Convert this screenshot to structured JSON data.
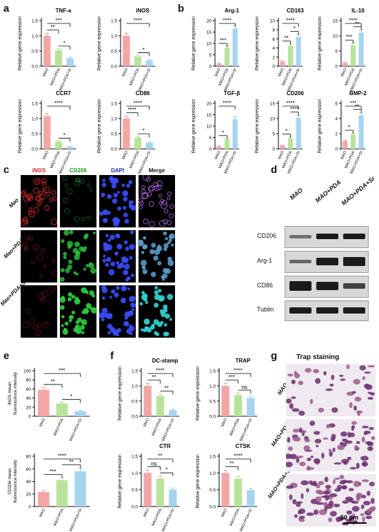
{
  "panels": {
    "a": "a",
    "b": "b",
    "c": "c",
    "d": "d",
    "e": "e",
    "f": "f",
    "g": "g"
  },
  "colors": {
    "mao": "#f4a6a6",
    "pda": "#b9e39a",
    "sr": "#a6d4ef",
    "stroke": "#333333"
  },
  "groups": [
    "MAO",
    "MAO+PDA",
    "MAO+PDA+Sr"
  ],
  "micro": {
    "columns": [
      "iNOS",
      "CD206",
      "DAPI",
      "Merge"
    ],
    "column_colors": [
      "#e02020",
      "#1a9c1a",
      "#1b2fc0",
      "#111111"
    ],
    "rows": [
      "Mao",
      "Mao+PDA",
      "Mao+PDA+Sr"
    ],
    "scalebar": "20 μm"
  },
  "western": {
    "lanes": [
      "MAO",
      "MAO+PDA",
      "MAO+PDA+Sr"
    ],
    "proteins": [
      "CD206",
      "Arg-1",
      "CD86",
      "Tublin"
    ]
  },
  "trap": {
    "title": "Trap staining",
    "rows": [
      "MAO",
      "MAO+PDA",
      "MAO+PDA+Sr"
    ],
    "scalebar": "50 μm"
  },
  "chart_data": [
    {
      "id": "tnfa",
      "type": "bar",
      "title": "TNF-a",
      "ylabel": "Relative gene expression",
      "categories": [
        "MAO",
        "MAO+PDA",
        "MAO+PDA+Sr"
      ],
      "values": [
        1.0,
        0.52,
        0.26
      ],
      "ylim": [
        0,
        1.5
      ],
      "yticks": [
        "0.0",
        "0.5",
        "1.0",
        "1.5"
      ],
      "sig": [
        {
          "a": 0,
          "b": 1,
          "t": "**"
        },
        {
          "a": 0,
          "b": 2,
          "t": "***"
        },
        {
          "a": 1,
          "b": 2,
          "t": "*"
        }
      ]
    },
    {
      "id": "inos",
      "type": "bar",
      "title": "iNOS",
      "ylabel": "Relative gene expression",
      "categories": [
        "MAO",
        "MAO+PDA",
        "MAO+PDA+Sr"
      ],
      "values": [
        1.0,
        0.32,
        0.19
      ],
      "ylim": [
        0,
        1.5
      ],
      "yticks": [
        "0.0",
        "0.5",
        "1.0",
        "1.5"
      ],
      "sig": [
        {
          "a": 0,
          "b": 2,
          "t": "****"
        },
        {
          "a": 1,
          "b": 2,
          "t": "*"
        }
      ]
    },
    {
      "id": "ccr7",
      "type": "bar",
      "title": "CCR7",
      "ylabel": "Relative gene expression",
      "categories": [
        "MAO",
        "MAO+PDA",
        "MAO+PDA+Sr"
      ],
      "values": [
        1.08,
        0.24,
        0.06
      ],
      "ylim": [
        0,
        1.5
      ],
      "yticks": [
        "0.0",
        "0.5",
        "1.0",
        "1.5"
      ],
      "sig": [
        {
          "a": 0,
          "b": 2,
          "t": "****"
        },
        {
          "a": 1,
          "b": 2,
          "t": "*"
        }
      ]
    },
    {
      "id": "cd86",
      "type": "bar",
      "title": "CD86",
      "ylabel": "Relative gene expression",
      "categories": [
        "MAO",
        "MAO+PDA",
        "MAO+PDA+Sr"
      ],
      "values": [
        1.0,
        0.37,
        0.2
      ],
      "ylim": [
        0,
        1.5
      ],
      "yticks": [
        "0.0",
        "0.5",
        "1.0",
        "1.5"
      ],
      "sig": [
        {
          "a": 0,
          "b": 1,
          "t": "****"
        },
        {
          "a": 0,
          "b": 2,
          "t": "****"
        },
        {
          "a": 1,
          "b": 2,
          "t": "*"
        }
      ]
    },
    {
      "id": "arg1",
      "type": "bar",
      "title": "Arg-1",
      "ylabel": "Relative gene expression",
      "categories": [
        "MAO",
        "MAO+PDA",
        "MAO+PDA+Sr"
      ],
      "values": [
        1.0,
        8.0,
        16.5
      ],
      "ylim": [
        0,
        20
      ],
      "yticks": [
        "0",
        "5",
        "10",
        "15",
        "20"
      ],
      "sig": [
        {
          "a": 0,
          "b": 1,
          "t": "***"
        },
        {
          "a": 0,
          "b": 2,
          "t": "****"
        }
      ]
    },
    {
      "id": "cd163",
      "type": "bar",
      "title": "CD163",
      "ylabel": "Relative gene expression",
      "categories": [
        "MAO",
        "MAO+PDA",
        "MAO+PDA+Sr"
      ],
      "values": [
        1.0,
        4.5,
        6.4
      ],
      "ylim": [
        0,
        10
      ],
      "yticks": [
        "0",
        "2",
        "4",
        "6",
        "8",
        "10"
      ],
      "sig": [
        {
          "a": 0,
          "b": 1,
          "t": "**"
        },
        {
          "a": 0,
          "b": 2,
          "t": "****"
        },
        {
          "a": 1,
          "b": 2,
          "t": "*"
        }
      ]
    },
    {
      "id": "il10",
      "type": "bar",
      "title": "IL-10",
      "ylabel": "Relative gene expression",
      "categories": [
        "MAO",
        "MAO+PDA",
        "MAO+PDA+Sr"
      ],
      "values": [
        1.0,
        7.0,
        11.0
      ],
      "ylim": [
        0,
        15
      ],
      "yticks": [
        "0",
        "5",
        "10",
        "15"
      ],
      "sig": [
        {
          "a": 0,
          "b": 1,
          "t": "***"
        },
        {
          "a": 0,
          "b": 2,
          "t": "****"
        },
        {
          "a": 1,
          "b": 2,
          "t": "**"
        }
      ]
    },
    {
      "id": "tgfb",
      "type": "bar",
      "title": "TGF-β",
      "ylabel": "Relative gene expression",
      "categories": [
        "MAO",
        "MAO+PDA",
        "MAO+PDA+Sr"
      ],
      "values": [
        1.0,
        4.2,
        13.0
      ],
      "ylim": [
        0,
        20
      ],
      "yticks": [
        "0",
        "5",
        "10",
        "15",
        "20"
      ],
      "sig": [
        {
          "a": 0,
          "b": 1,
          "t": "*"
        },
        {
          "a": 0,
          "b": 2,
          "t": "****"
        }
      ]
    },
    {
      "id": "cd206",
      "type": "bar",
      "title": "CD206",
      "ylabel": "Relative gene expression",
      "categories": [
        "MAO",
        "MAO+PDA",
        "MAO+PDA+Sr"
      ],
      "values": [
        1.0,
        3.6,
        10.2
      ],
      "ylim": [
        0,
        15
      ],
      "yticks": [
        "0",
        "5",
        "10",
        "15"
      ],
      "sig": [
        {
          "a": 0,
          "b": 1,
          "t": "*"
        },
        {
          "a": 0,
          "b": 2,
          "t": "****"
        },
        {
          "a": 1,
          "b": 2,
          "t": "****"
        }
      ]
    },
    {
      "id": "bmp2",
      "type": "bar",
      "title": "BMP-2",
      "ylabel": "Relative gene expression",
      "categories": [
        "MAO",
        "MAO+PDA",
        "MAO+PDA+Sr"
      ],
      "values": [
        1.0,
        1.9,
        4.4
      ],
      "ylim": [
        0,
        6
      ],
      "yticks": [
        "0",
        "2",
        "4",
        "6"
      ],
      "sig": [
        {
          "a": 0,
          "b": 1,
          "t": "*"
        },
        {
          "a": 0,
          "b": 2,
          "t": "***"
        },
        {
          "a": 1,
          "b": 2,
          "t": "**"
        }
      ]
    },
    {
      "id": "inos_fl",
      "type": "bar",
      "title": "",
      "ylabel": "iNOS mean fluorescence intensity",
      "categories": [
        "MAO",
        "MAO+PDA",
        "MAO+PDA+Sr"
      ],
      "values": [
        58,
        28,
        11
      ],
      "ylim": [
        0,
        100
      ],
      "yticks": [
        "0",
        "20",
        "40",
        "60",
        "80",
        "100"
      ],
      "sig": [
        {
          "a": 0,
          "b": 1,
          "t": "**"
        },
        {
          "a": 0,
          "b": 2,
          "t": "***"
        },
        {
          "a": 1,
          "b": 2,
          "t": "*"
        }
      ]
    },
    {
      "id": "cd206_fl",
      "type": "bar",
      "title": "",
      "ylabel": "CD206 mean fluorescence intensity",
      "categories": [
        "MAO",
        "MAO+PDA",
        "MAO+PDA+Sr"
      ],
      "values": [
        23,
        42,
        56
      ],
      "ylim": [
        0,
        80
      ],
      "yticks": [
        "0",
        "20",
        "40",
        "60",
        "80"
      ],
      "sig": [
        {
          "a": 0,
          "b": 1,
          "t": "***"
        },
        {
          "a": 0,
          "b": 2,
          "t": "****"
        },
        {
          "a": 1,
          "b": 2,
          "t": "**"
        }
      ]
    },
    {
      "id": "dcstamp",
      "type": "bar",
      "title": "DC-stamp",
      "ylabel": "Relative gene expression",
      "categories": [
        "MAO",
        "MAO+PDA",
        "MAO+PDA+Sr"
      ],
      "values": [
        1.0,
        0.67,
        0.2
      ],
      "ylim": [
        0,
        1.5
      ],
      "yticks": [
        "0.0",
        "0.5",
        "1.0",
        "1.5"
      ],
      "sig": [
        {
          "a": 0,
          "b": 1,
          "t": "**"
        },
        {
          "a": 0,
          "b": 2,
          "t": "****"
        },
        {
          "a": 1,
          "b": 2,
          "t": "**"
        }
      ]
    },
    {
      "id": "trap",
      "type": "bar",
      "title": "TRAP",
      "ylabel": "Relative gene expression",
      "categories": [
        "MAO",
        "MAO+PDA",
        "MAO+PDA+Sr"
      ],
      "values": [
        1.0,
        0.7,
        0.6
      ],
      "ylim": [
        0,
        1.5
      ],
      "yticks": [
        "0.0",
        "0.5",
        "1.0",
        "1.5"
      ],
      "sig": [
        {
          "a": 0,
          "b": 1,
          "t": "***"
        },
        {
          "a": 0,
          "b": 2,
          "t": "****"
        },
        {
          "a": 1,
          "b": 2,
          "t": "ns"
        }
      ]
    },
    {
      "id": "ctr",
      "type": "bar",
      "title": "CTR",
      "ylabel": "Relative gene expression",
      "categories": [
        "MAO",
        "MAO+PDA",
        "MAO+PDA+Sr"
      ],
      "values": [
        1.0,
        0.83,
        0.5
      ],
      "ylim": [
        0,
        1.5
      ],
      "yticks": [
        "0.0",
        "0.5",
        "1.0",
        "1.5"
      ],
      "sig": [
        {
          "a": 0,
          "b": 1,
          "t": "ns"
        },
        {
          "a": 0,
          "b": 2,
          "t": "**"
        },
        {
          "a": 1,
          "b": 2,
          "t": "*"
        }
      ]
    },
    {
      "id": "ctsk",
      "type": "bar",
      "title": "CTSK",
      "ylabel": "Relative gene expression",
      "categories": [
        "MAO",
        "MAO+PDA",
        "MAO+PDA+Sr"
      ],
      "values": [
        1.0,
        0.83,
        0.49
      ],
      "ylim": [
        0,
        1.5
      ],
      "yticks": [
        "0.0",
        "0.5",
        "1.0",
        "1.5"
      ],
      "sig": [
        {
          "a": 0,
          "b": 1,
          "t": "**"
        },
        {
          "a": 0,
          "b": 2,
          "t": "****"
        }
      ]
    }
  ]
}
